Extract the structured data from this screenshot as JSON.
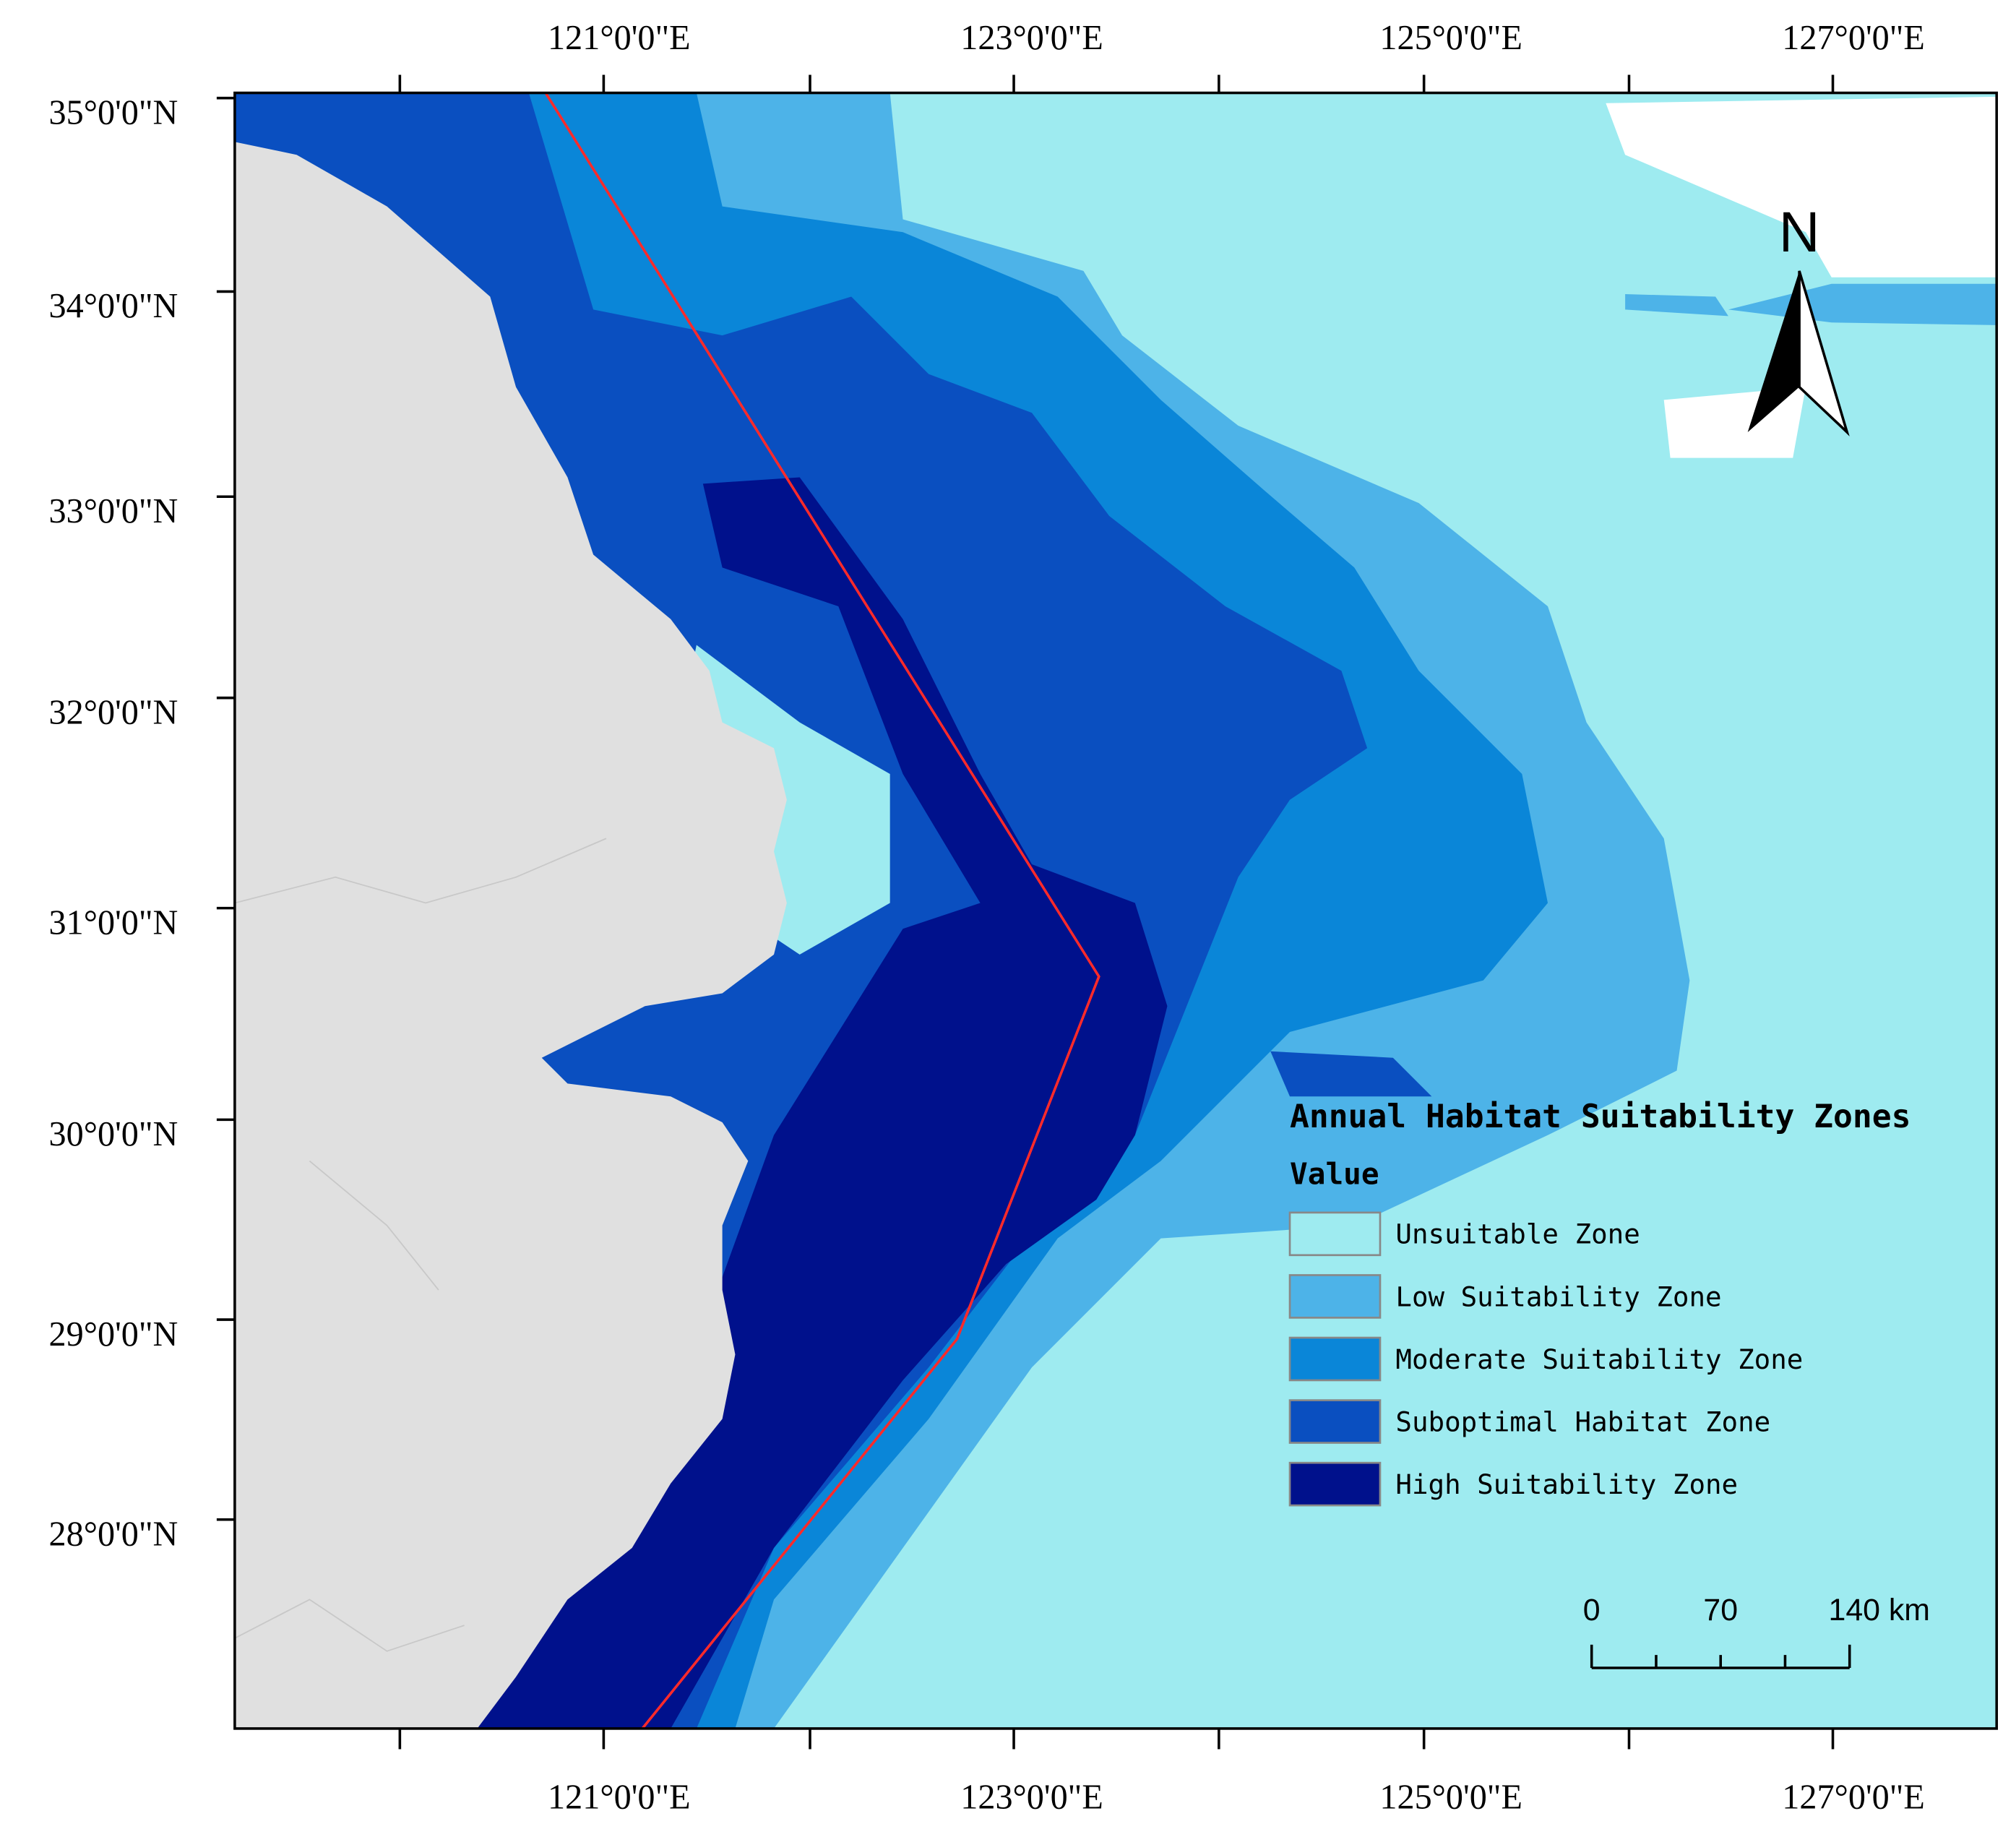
{
  "map": {
    "lon_labels_top": [
      "121°0'0\"E",
      "123°0'0\"E",
      "125°0'0\"E",
      "127°0'0\"E"
    ],
    "lon_labels_bottom": [
      "121°0'0\"E",
      "123°0'0\"E",
      "125°0'0\"E",
      "127°0'0\"E"
    ],
    "lat_labels": [
      "35°0'0\"N",
      "34°0'0\"N",
      "33°0'0\"N",
      "32°0'0\"N",
      "31°0'0\"N",
      "30°0'0\"N",
      "29°0'0\"N",
      "28°0'0\"N"
    ],
    "north_label": "N",
    "legend": {
      "title": "Annual Habitat Suitability Zones",
      "subtitle": "Value",
      "items": [
        {
          "label": "Unsuitable Zone",
          "color": "#9eebf0"
        },
        {
          "label": "Low Suitability Zone",
          "color": "#4db3e8"
        },
        {
          "label": "Moderate Suitability Zone",
          "color": "#0a86d8"
        },
        {
          "label": "Suboptimal Habitat Zone",
          "color": "#0a4fc0"
        },
        {
          "label": "High Suitability Zone",
          "color": "#00118c"
        }
      ]
    },
    "scale_bar": {
      "labels": [
        "0",
        "70",
        "140 km"
      ]
    }
  }
}
